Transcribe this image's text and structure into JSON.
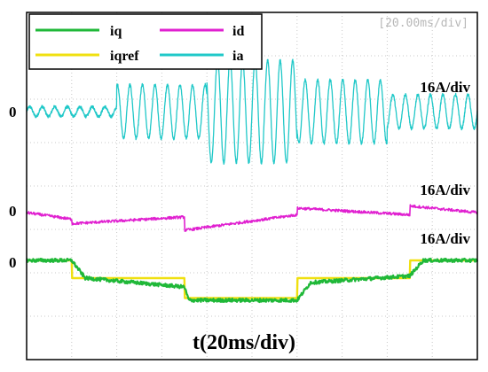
{
  "chart_data": {
    "type": "line",
    "timebase_readout": "[20.00ms/div]",
    "xlabel": "t(20ms/div)",
    "x_unit": "div",
    "xlim": [
      0,
      10
    ],
    "legend": {
      "placement": "top-left",
      "entries": [
        {
          "key": "iq",
          "label": "iq",
          "color": "#1fb838"
        },
        {
          "key": "id",
          "label": "id",
          "color": "#e020d0"
        },
        {
          "key": "iqref",
          "label": "iqref",
          "color": "#f0e010"
        },
        {
          "key": "ia",
          "label": "ia",
          "color": "#20c8c8"
        }
      ]
    },
    "channels": [
      {
        "key": "ia",
        "scale": "16A/div",
        "zero_label": "0"
      },
      {
        "key": "id",
        "scale": "16A/div",
        "zero_label": "0"
      },
      {
        "key": "iq",
        "scale": "16A/div",
        "zero_label": "0"
      }
    ],
    "ia_amplitude": {
      "time_div": [
        0,
        1,
        2,
        3,
        4,
        5,
        6,
        7,
        8,
        9,
        10
      ],
      "amplitude_div": [
        0.1,
        0.1,
        0.55,
        0.55,
        1.05,
        1.05,
        0.65,
        0.65,
        0.35,
        0.35,
        0.1
      ]
    },
    "id_trace": {
      "time_div": [
        0,
        1,
        1.01,
        3.5,
        3.51,
        6,
        6.01,
        8.5,
        8.51,
        10
      ],
      "value_div": [
        0,
        -0.15,
        -0.25,
        -0.1,
        -0.4,
        -0.05,
        0.1,
        -0.05,
        0.15,
        0
      ]
    },
    "iq_trace": {
      "time_div": [
        0,
        1,
        1.3,
        3.5,
        3.6,
        6,
        6.3,
        8.5,
        8.8,
        10
      ],
      "value_div": [
        0,
        0,
        -0.4,
        -0.6,
        -0.9,
        -0.9,
        -0.5,
        -0.35,
        0,
        0
      ]
    },
    "iqref_trace": {
      "time_div": [
        0,
        1,
        1.01,
        3.5,
        3.51,
        6,
        6.01,
        8.5,
        8.51,
        10
      ],
      "value_div": [
        0,
        0,
        -0.4,
        -0.4,
        -0.85,
        -0.85,
        -0.4,
        -0.4,
        0,
        0
      ]
    }
  }
}
